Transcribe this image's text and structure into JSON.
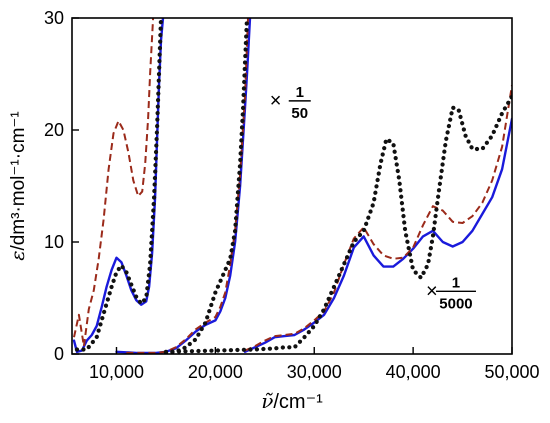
{
  "chart_data": {
    "type": "line",
    "xlabel_main": "ν̃",
    "xlabel_unit": "/cm⁻¹",
    "ylabel_main": "ε",
    "ylabel_unit": "/dm³·mol⁻¹·cm⁻¹",
    "xlim": [
      5500,
      50000
    ],
    "ylim": [
      0,
      30
    ],
    "x_ticks": [
      10000,
      20000,
      30000,
      40000,
      50000
    ],
    "x_tick_labels": [
      "10,000",
      "20,000",
      "30,000",
      "40,000",
      "50,000"
    ],
    "y_ticks": [
      0,
      10,
      20,
      30
    ],
    "y_tick_labels": [
      "0",
      "10",
      "20",
      "30"
    ],
    "grid": false,
    "annotations": [
      {
        "prefix": "×",
        "numerator": "1",
        "denominator": "50",
        "x": 25500,
        "y": 22.6
      },
      {
        "prefix": "×",
        "numerator": "1",
        "denominator": "5000",
        "x": 41300,
        "y": 5.6
      }
    ],
    "series": [
      {
        "color": "#1a1adb",
        "style": "solid",
        "segments": [
          [
            [
              5700,
              1.2
            ],
            [
              6000,
              0.2
            ],
            [
              6500,
              0.3
            ],
            [
              7000,
              1.2
            ],
            [
              7500,
              1.7
            ],
            [
              8000,
              2.5
            ],
            [
              8500,
              4.2
            ],
            [
              9000,
              6.0
            ],
            [
              9500,
              7.5
            ],
            [
              10000,
              8.6
            ],
            [
              10500,
              8.2
            ],
            [
              11000,
              7.0
            ],
            [
              11500,
              5.7
            ],
            [
              12000,
              4.8
            ],
            [
              12500,
              4.4
            ],
            [
              13000,
              4.7
            ],
            [
              13300,
              6.0
            ],
            [
              13600,
              9.0
            ],
            [
              13900,
              14.0
            ],
            [
              14100,
              19.0
            ],
            [
              14300,
              24.0
            ],
            [
              14500,
              28.0
            ],
            [
              14700,
              30.0
            ]
          ],
          [
            [
              10000,
              0.2
            ],
            [
              12000,
              0.1
            ],
            [
              14000,
              0.1
            ],
            [
              15000,
              0.2
            ],
            [
              16000,
              0.5
            ],
            [
              17000,
              1.2
            ],
            [
              18000,
              2.0
            ],
            [
              19000,
              2.6
            ],
            [
              20000,
              3.0
            ],
            [
              20500,
              3.8
            ],
            [
              21000,
              5.0
            ],
            [
              21500,
              7.0
            ],
            [
              22000,
              10.0
            ],
            [
              22500,
              15.0
            ],
            [
              23000,
              22.0
            ],
            [
              23200,
              25.0
            ],
            [
              23500,
              30.0
            ]
          ],
          [
            [
              23000,
              0.2
            ],
            [
              24000,
              0.6
            ],
            [
              25000,
              1.0
            ],
            [
              26000,
              1.5
            ],
            [
              27000,
              1.6
            ],
            [
              28000,
              1.7
            ],
            [
              29000,
              2.2
            ],
            [
              30000,
              2.8
            ],
            [
              31000,
              3.5
            ],
            [
              32000,
              5.0
            ],
            [
              33000,
              7.0
            ],
            [
              34000,
              9.5
            ],
            [
              35000,
              10.5
            ],
            [
              36000,
              8.8
            ],
            [
              37000,
              7.8
            ],
            [
              38000,
              7.8
            ],
            [
              39000,
              8.5
            ],
            [
              40000,
              9.4
            ],
            [
              41000,
              10.5
            ],
            [
              42000,
              11.0
            ],
            [
              43000,
              10.0
            ],
            [
              44000,
              9.6
            ],
            [
              45000,
              10.0
            ],
            [
              46000,
              11.0
            ],
            [
              47000,
              12.5
            ],
            [
              48000,
              14.0
            ],
            [
              49000,
              16.5
            ],
            [
              50000,
              21.0
            ]
          ]
        ]
      },
      {
        "color": "#9b2a1a",
        "style": "dashed",
        "segments": [
          [
            [
              5700,
              1.5
            ],
            [
              6200,
              3.5
            ],
            [
              6700,
              0.7
            ],
            [
              7200,
              4.0
            ],
            [
              7700,
              5.7
            ],
            [
              8200,
              8.5
            ],
            [
              8700,
              12.0
            ],
            [
              9200,
              16.5
            ],
            [
              9700,
              19.7
            ],
            [
              10200,
              20.8
            ],
            [
              10700,
              20.0
            ],
            [
              11200,
              18.0
            ],
            [
              11700,
              15.5
            ],
            [
              12200,
              14.1
            ],
            [
              12600,
              14.5
            ],
            [
              12900,
              17.0
            ],
            [
              13200,
              21.0
            ],
            [
              13400,
              25.0
            ],
            [
              13700,
              30.0
            ]
          ],
          [
            [
              11000,
              0.1
            ],
            [
              14000,
              0.1
            ],
            [
              15000,
              0.2
            ],
            [
              16000,
              0.6
            ],
            [
              17000,
              1.3
            ],
            [
              18000,
              2.2
            ],
            [
              19000,
              2.8
            ],
            [
              20000,
              3.3
            ],
            [
              20500,
              4.2
            ],
            [
              21000,
              5.5
            ],
            [
              21500,
              8.0
            ],
            [
              22000,
              11.0
            ],
            [
              22500,
              16.0
            ],
            [
              23000,
              23.0
            ],
            [
              23300,
              30.0
            ]
          ],
          [
            [
              23000,
              0.3
            ],
            [
              24000,
              0.7
            ],
            [
              25000,
              1.2
            ],
            [
              26000,
              1.6
            ],
            [
              27000,
              1.7
            ],
            [
              28000,
              1.8
            ],
            [
              29000,
              2.3
            ],
            [
              30000,
              3.0
            ],
            [
              31000,
              3.8
            ],
            [
              32000,
              5.5
            ],
            [
              33000,
              8.0
            ],
            [
              34000,
              10.3
            ],
            [
              35000,
              11.3
            ],
            [
              36000,
              9.8
            ],
            [
              37000,
              8.8
            ],
            [
              38000,
              8.5
            ],
            [
              39000,
              8.6
            ],
            [
              40000,
              9.5
            ],
            [
              41000,
              11.5
            ],
            [
              42000,
              13.2
            ],
            [
              43000,
              12.8
            ],
            [
              44000,
              11.8
            ],
            [
              45000,
              11.7
            ],
            [
              46000,
              12.3
            ],
            [
              47000,
              13.5
            ],
            [
              48000,
              15.5
            ],
            [
              49000,
              18.5
            ],
            [
              50000,
              24.0
            ]
          ]
        ]
      },
      {
        "color": "#111111",
        "style": "dotted",
        "segments": [
          [
            [
              6000,
              0.4
            ],
            [
              7000,
              0.4
            ],
            [
              8000,
              1.5
            ],
            [
              9000,
              4.5
            ],
            [
              9500,
              6.0
            ],
            [
              10000,
              7.3
            ],
            [
              10500,
              7.9
            ],
            [
              11000,
              7.3
            ],
            [
              11500,
              6.2
            ],
            [
              12000,
              5.1
            ],
            [
              12500,
              4.5
            ],
            [
              13000,
              5.0
            ],
            [
              13400,
              8.0
            ],
            [
              13800,
              14.0
            ],
            [
              14100,
              20.0
            ],
            [
              14300,
              25.0
            ],
            [
              14500,
              30.0
            ]
          ],
          [
            [
              15000,
              0.1
            ],
            [
              16000,
              0.2
            ],
            [
              17000,
              0.6
            ],
            [
              18000,
              1.3
            ],
            [
              19000,
              2.8
            ],
            [
              20000,
              5.5
            ],
            [
              21000,
              7.5
            ],
            [
              21500,
              8.5
            ],
            [
              22000,
              11.0
            ],
            [
              22500,
              17.0
            ],
            [
              22800,
              22.0
            ],
            [
              23000,
              26.0
            ],
            [
              23200,
              30.0
            ]
          ],
          [
            [
              15000,
              0.2
            ],
            [
              20000,
              0.3
            ],
            [
              24000,
              0.4
            ],
            [
              26000,
              0.5
            ],
            [
              27000,
              0.6
            ],
            [
              28000,
              0.6
            ],
            [
              29000,
              1.5
            ],
            [
              30000,
              2.5
            ],
            [
              31000,
              4.0
            ],
            [
              32000,
              6.0
            ],
            [
              33000,
              8.0
            ],
            [
              34000,
              10.0
            ],
            [
              35000,
              11.0
            ],
            [
              36000,
              13.5
            ],
            [
              36700,
              17.0
            ],
            [
              37300,
              19.2
            ],
            [
              38000,
              18.8
            ],
            [
              38600,
              15.5
            ],
            [
              39200,
              11.0
            ],
            [
              40000,
              7.5
            ],
            [
              40800,
              6.8
            ],
            [
              41500,
              8.0
            ],
            [
              42000,
              10.5
            ],
            [
              42600,
              14.5
            ],
            [
              43300,
              19.0
            ],
            [
              44000,
              22.0
            ],
            [
              44600,
              21.8
            ],
            [
              45300,
              19.5
            ],
            [
              46000,
              18.3
            ],
            [
              47000,
              18.3
            ],
            [
              48000,
              19.5
            ],
            [
              49000,
              21.5
            ],
            [
              50000,
              23.0
            ]
          ]
        ]
      }
    ]
  }
}
